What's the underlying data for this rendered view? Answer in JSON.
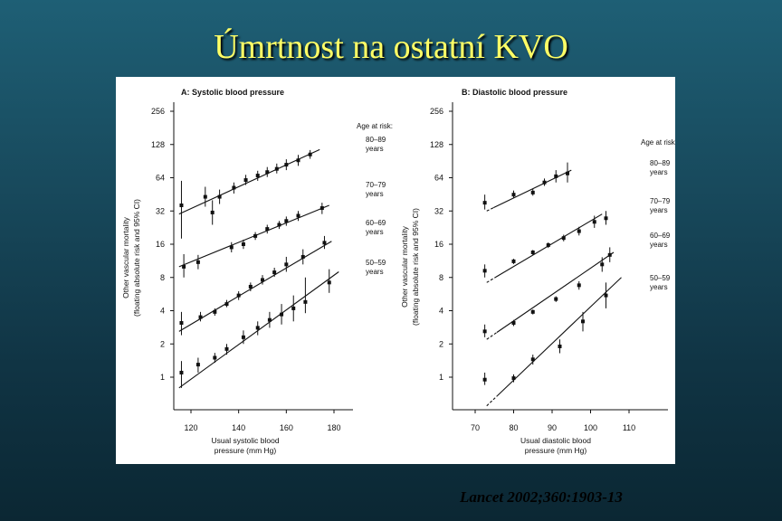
{
  "slide": {
    "title": "Úmrtnost na ostatní KVO",
    "citation": "Lancet 2002;360:1903-13"
  },
  "chart_data": [
    {
      "type": "scatter",
      "title": "A: Systolic blood pressure",
      "xlabel": "Usual systolic blood pressure (mm Hg)",
      "ylabel": "Other vascular mortality (floating absolute risk and 95% CI)",
      "yscale": "log2",
      "xlim": [
        112,
        186
      ],
      "ylim": [
        0.7,
        256
      ],
      "xticks": [
        120,
        140,
        160,
        180
      ],
      "yticks": [
        1,
        2,
        4,
        8,
        16,
        32,
        64,
        128,
        256
      ],
      "legend_title": "Age at risk:",
      "series": [
        {
          "name": "80–89",
          "unit": "years",
          "fit": [
            [
              115,
              30
            ],
            [
              174,
              115
            ]
          ],
          "points": [
            [
              116,
              36,
              18,
              60
            ],
            [
              126,
              43,
              35,
              53
            ],
            [
              132,
              43,
              37,
              50
            ],
            [
              138,
              52,
              46,
              58
            ],
            [
              143,
              61,
              55,
              68
            ],
            [
              148,
              67,
              60,
              74
            ],
            [
              152,
              72,
              65,
              80
            ],
            [
              156,
              77,
              70,
              86
            ],
            [
              160,
              84,
              75,
              94
            ],
            [
              165,
              92,
              82,
              103
            ],
            [
              170,
              104,
              95,
              114
            ]
          ]
        },
        {
          "name": "70–79",
          "unit": "years",
          "fit": [
            [
              115,
              10
            ],
            [
              178,
              36
            ]
          ],
          "points": [
            [
              117,
              10,
              8,
              13
            ],
            [
              123,
              11,
              9.5,
              12.8
            ],
            [
              129,
              31,
              24,
              40
            ],
            [
              137,
              15,
              13.5,
              16.7
            ],
            [
              142,
              16,
              14.5,
              17.6
            ],
            [
              147,
              19,
              17.5,
              20.6
            ],
            [
              152,
              22,
              20,
              24
            ],
            [
              157,
              24,
              22,
              26
            ],
            [
              160,
              26,
              23.5,
              28.5
            ],
            [
              165,
              29,
              26,
              32
            ],
            [
              175,
              34,
              30,
              38
            ]
          ]
        },
        {
          "name": "60–69",
          "unit": "years",
          "fit": [
            [
              115,
              2.6
            ],
            [
              179,
              17
            ]
          ],
          "points": [
            [
              116,
              3.1,
              2.4,
              3.9
            ],
            [
              124,
              3.5,
              3.2,
              3.9
            ],
            [
              130,
              3.9,
              3.6,
              4.2
            ],
            [
              135,
              4.6,
              4.3,
              5
            ],
            [
              140,
              5.5,
              5,
              6
            ],
            [
              145,
              6.6,
              6,
              7.2
            ],
            [
              150,
              7.6,
              6.9,
              8.4
            ],
            [
              155,
              8.9,
              8.1,
              9.8
            ],
            [
              160,
              10.5,
              9,
              12.3
            ],
            [
              167,
              12.3,
              10.5,
              14.4
            ],
            [
              176,
              16.5,
              14.5,
              19
            ]
          ]
        },
        {
          "name": "50–59",
          "unit": "years",
          "fit": [
            [
              115,
              0.8
            ],
            [
              182,
              9
            ]
          ],
          "points": [
            [
              116,
              1.1,
              0.8,
              1.4
            ],
            [
              123,
              1.3,
              1.1,
              1.5
            ],
            [
              130,
              1.5,
              1.35,
              1.66
            ],
            [
              135,
              1.8,
              1.6,
              2
            ],
            [
              142,
              2.3,
              2,
              2.65
            ],
            [
              148,
              2.8,
              2.4,
              3.2
            ],
            [
              153,
              3.3,
              2.8,
              3.9
            ],
            [
              158,
              3.7,
              3,
              4.6
            ],
            [
              163,
              4.2,
              3.2,
              5.5
            ],
            [
              168,
              4.8,
              3.8,
              8
            ],
            [
              178,
              7.2,
              5.8,
              9.5
            ]
          ]
        }
      ]
    },
    {
      "type": "scatter",
      "title": "B: Diastolic blood pressure",
      "xlabel": "Usual diastolic blood pressure (mm Hg)",
      "ylabel": "Other vascular mortality (floating absolute risk and 95% CI)",
      "yscale": "log2",
      "xlim": [
        67,
        113
      ],
      "ylim": [
        0.7,
        256
      ],
      "xticks": [
        70,
        80,
        90,
        100,
        110
      ],
      "yticks": [
        1,
        2,
        4,
        8,
        16,
        32,
        64,
        128,
        256
      ],
      "legend_title": "Age at risk:",
      "series": [
        {
          "name": "80–89",
          "unit": "years",
          "fit": [
            [
              73,
              32
            ],
            [
              95,
              75
            ]
          ],
          "points": [
            [
              72.5,
              38,
              33,
              45
            ],
            [
              80,
              45,
              42,
              49
            ],
            [
              85,
              47,
              44,
              51
            ],
            [
              88,
              58,
              54,
              63
            ],
            [
              91,
              66,
              58,
              75
            ],
            [
              94,
              70,
              58,
              88
            ]
          ]
        },
        {
          "name": "70–79",
          "unit": "years",
          "fit": [
            [
              73,
              7.2
            ],
            [
              103,
              30
            ]
          ],
          "points": [
            [
              72.5,
              9.2,
              8,
              10.5
            ],
            [
              80,
              11.2,
              10.6,
              11.8
            ],
            [
              85,
              13.5,
              12.8,
              14.2
            ],
            [
              89,
              15.7,
              14.8,
              16.6
            ],
            [
              93,
              18.2,
              17,
              19.5
            ],
            [
              97,
              21,
              19.2,
              23
            ],
            [
              101,
              25.5,
              22.5,
              29
            ],
            [
              104,
              27.5,
              24,
              32
            ]
          ]
        },
        {
          "name": "60–69",
          "unit": "years",
          "fit": [
            [
              73,
              2.2
            ],
            [
              106,
              13.5
            ]
          ],
          "points": [
            [
              72.5,
              2.6,
              2.3,
              3
            ],
            [
              80,
              3.1,
              2.9,
              3.3
            ],
            [
              85,
              3.9,
              3.7,
              4.1
            ],
            [
              91,
              5.1,
              4.8,
              5.4
            ],
            [
              97,
              6.8,
              6.2,
              7.4
            ],
            [
              103,
              10.5,
              9,
              12.2
            ],
            [
              105,
              12.8,
              11,
              15
            ]
          ]
        },
        {
          "name": "50–59",
          "unit": "years",
          "fit": [
            [
              73,
              0.55
            ],
            [
              108,
              8
            ]
          ],
          "points": [
            [
              72.5,
              0.95,
              0.85,
              1.1
            ],
            [
              80,
              0.98,
              0.9,
              1.06
            ],
            [
              85,
              1.45,
              1.3,
              1.6
            ],
            [
              92,
              1.9,
              1.65,
              2.2
            ],
            [
              98,
              3.2,
              2.6,
              3.9
            ],
            [
              104,
              5.5,
              4.2,
              7.2
            ]
          ]
        }
      ]
    }
  ]
}
